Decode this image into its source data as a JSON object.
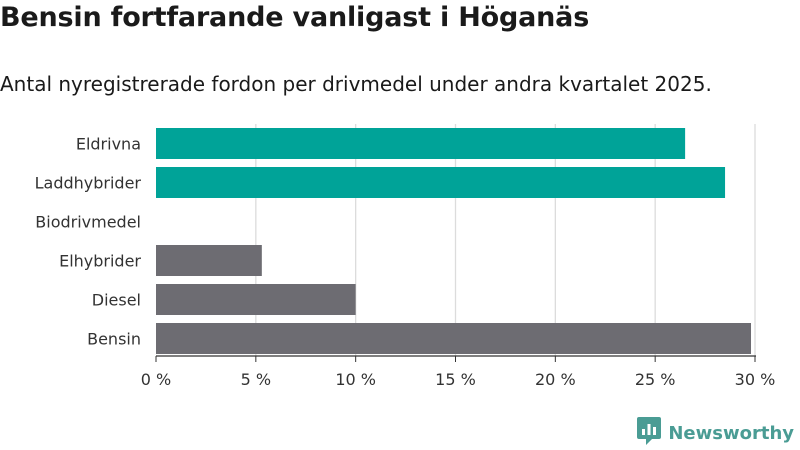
{
  "title": "Bensin fortfarande vanligast i Höganäs",
  "subtitle": "Antal nyregistrerade fordon per drivmedel under andra kvartalet 2025.",
  "brand": {
    "name": "Newsworthy",
    "icon": "newsworthy-logo-icon"
  },
  "colors": {
    "electric": "#00a398",
    "fossil": "#6d6c72",
    "grid": "#dcdcdc",
    "axis": "#333333"
  },
  "chart_data": {
    "type": "bar",
    "orientation": "horizontal",
    "categories": [
      "Eldrivna",
      "Laddhybrider",
      "Biodrivmedel",
      "Elhybrider",
      "Diesel",
      "Bensin"
    ],
    "values": [
      26.5,
      28.5,
      0,
      5.3,
      10.0,
      29.8
    ],
    "unit": "%",
    "xlim": [
      0,
      30
    ],
    "xticks": [
      0,
      5,
      10,
      15,
      20,
      25,
      30
    ],
    "xtick_labels": [
      "0 %",
      "5 %",
      "10 %",
      "15 %",
      "20 %",
      "25 %",
      "30 %"
    ],
    "bar_color_groups": [
      "electric",
      "electric",
      "electric",
      "fossil",
      "fossil",
      "fossil"
    ],
    "grid": true,
    "legend": "none"
  }
}
